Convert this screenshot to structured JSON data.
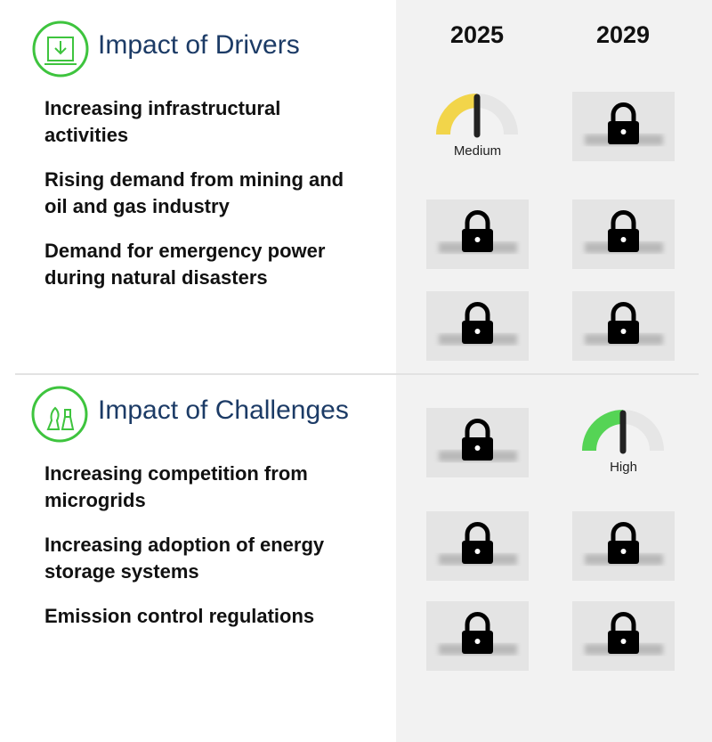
{
  "columns": [
    "2025",
    "2029"
  ],
  "sections": [
    {
      "title": "Impact of Drivers",
      "items": [
        "Increasing infrastructural activities",
        "Rising demand from mining and oil and gas industry",
        "Demand for emergency power during natural disasters"
      ],
      "cells": [
        [
          {
            "label": "Medium",
            "color": "#f2d54a"
          },
          null
        ],
        [
          null,
          null
        ],
        [
          null,
          null
        ]
      ]
    },
    {
      "title": "Impact of Challenges",
      "items": [
        "Increasing competition from microgrids",
        "Increasing adoption of energy storage systems",
        "Emission control regulations"
      ],
      "cells": [
        [
          null,
          {
            "label": "High",
            "color": "#55d455"
          }
        ],
        [
          null,
          null
        ],
        [
          null,
          null
        ]
      ]
    }
  ]
}
